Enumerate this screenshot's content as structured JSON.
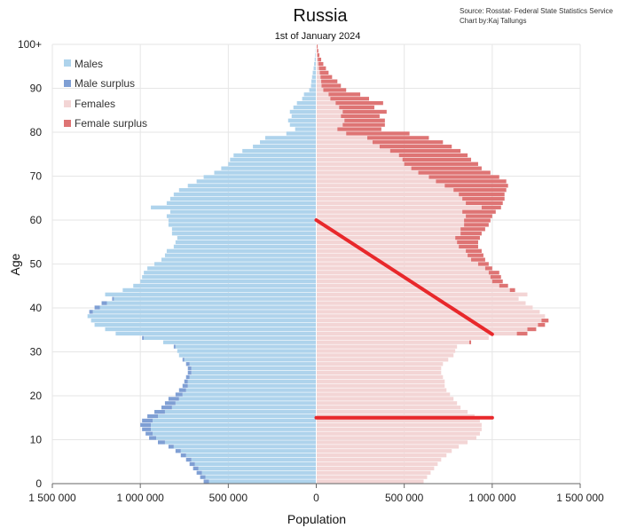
{
  "chart_data": {
    "type": "bar",
    "title": "Russia",
    "subtitle": "1st of January 2024",
    "source_line1": "Source: Rosstat- Federal State Statistics Service",
    "source_line2": "Chart by:Kaj Tallungs",
    "xlabel": "Population",
    "ylabel": "Age",
    "xlim": [
      -1500000,
      1500000
    ],
    "ylim": [
      0,
      100
    ],
    "x_ticks": [
      {
        "value": -1500000,
        "label": "1 500 000"
      },
      {
        "value": -1000000,
        "label": "1 000 000"
      },
      {
        "value": -500000,
        "label": "500 000"
      },
      {
        "value": 0,
        "label": "0"
      },
      {
        "value": 500000,
        "label": "500 000"
      },
      {
        "value": 1000000,
        "label": "1 000 000"
      },
      {
        "value": 1500000,
        "label": "1 500 000"
      }
    ],
    "y_ticks": [
      {
        "value": 0,
        "label": "0"
      },
      {
        "value": 10,
        "label": "10"
      },
      {
        "value": 20,
        "label": "20"
      },
      {
        "value": 30,
        "label": "30"
      },
      {
        "value": 40,
        "label": "40"
      },
      {
        "value": 50,
        "label": "50"
      },
      {
        "value": 60,
        "label": "60"
      },
      {
        "value": 70,
        "label": "70"
      },
      {
        "value": 80,
        "label": "80"
      },
      {
        "value": 90,
        "label": "90"
      },
      {
        "value": 100,
        "label": "100+"
      }
    ],
    "grid": true,
    "legend_position": "top-left",
    "legend": [
      {
        "name": "Males",
        "color": "#aed3ec"
      },
      {
        "name": "Male surplus",
        "color": "#7f9fd4"
      },
      {
        "name": "Females",
        "color": "#f3d5d5"
      },
      {
        "name": "Female surplus",
        "color": "#de7474"
      }
    ],
    "ages": [
      0,
      1,
      2,
      3,
      4,
      5,
      6,
      7,
      8,
      9,
      10,
      11,
      12,
      13,
      14,
      15,
      16,
      17,
      18,
      19,
      20,
      21,
      22,
      23,
      24,
      25,
      26,
      27,
      28,
      29,
      30,
      31,
      32,
      33,
      34,
      35,
      36,
      37,
      38,
      39,
      40,
      41,
      42,
      43,
      44,
      45,
      46,
      47,
      48,
      49,
      50,
      51,
      52,
      53,
      54,
      55,
      56,
      57,
      58,
      59,
      60,
      61,
      62,
      63,
      64,
      65,
      66,
      67,
      68,
      69,
      70,
      71,
      72,
      73,
      74,
      75,
      76,
      77,
      78,
      79,
      80,
      81,
      82,
      83,
      84,
      85,
      86,
      87,
      88,
      89,
      90,
      91,
      92,
      93,
      94,
      95,
      96,
      97,
      98,
      99,
      100
    ],
    "series": [
      {
        "name": "Males",
        "values": [
          640000,
          660000,
          680000,
          700000,
          720000,
          740000,
          770000,
          800000,
          840000,
          900000,
          950000,
          970000,
          990000,
          1000000,
          990000,
          960000,
          920000,
          880000,
          860000,
          840000,
          800000,
          780000,
          760000,
          750000,
          740000,
          730000,
          730000,
          740000,
          760000,
          780000,
          790000,
          810000,
          870000,
          990000,
          1140000,
          1200000,
          1260000,
          1280000,
          1300000,
          1290000,
          1260000,
          1220000,
          1160000,
          1200000,
          1100000,
          1040000,
          1000000,
          990000,
          980000,
          960000,
          920000,
          880000,
          860000,
          850000,
          810000,
          800000,
          790000,
          820000,
          820000,
          840000,
          840000,
          850000,
          830000,
          940000,
          850000,
          830000,
          810000,
          780000,
          730000,
          680000,
          640000,
          580000,
          540000,
          500000,
          490000,
          470000,
          420000,
          360000,
          320000,
          290000,
          170000,
          120000,
          150000,
          160000,
          140000,
          150000,
          130000,
          110000,
          80000,
          70000,
          40000,
          30000,
          28000,
          24000,
          20000,
          15000,
          12000,
          9000,
          6000,
          4000,
          3000
        ]
      },
      {
        "name": "Females",
        "values": [
          610000,
          630000,
          650000,
          670000,
          690000,
          710000,
          740000,
          770000,
          810000,
          860000,
          910000,
          930000,
          940000,
          940000,
          930000,
          900000,
          860000,
          820000,
          800000,
          780000,
          760000,
          740000,
          730000,
          730000,
          720000,
          710000,
          710000,
          720000,
          750000,
          780000,
          790000,
          800000,
          880000,
          980000,
          1200000,
          1250000,
          1300000,
          1320000,
          1300000,
          1270000,
          1230000,
          1190000,
          1150000,
          1200000,
          1130000,
          1090000,
          1060000,
          1050000,
          1040000,
          1000000,
          980000,
          960000,
          950000,
          940000,
          920000,
          920000,
          930000,
          940000,
          960000,
          980000,
          990000,
          1000000,
          1020000,
          1050000,
          1060000,
          1070000,
          1070000,
          1080000,
          1090000,
          1080000,
          1040000,
          990000,
          940000,
          920000,
          880000,
          860000,
          820000,
          770000,
          720000,
          640000,
          530000,
          370000,
          390000,
          390000,
          360000,
          400000,
          330000,
          380000,
          300000,
          250000,
          170000,
          140000,
          120000,
          90000,
          70000,
          55000,
          40000,
          28000,
          18000,
          12000,
          8000
        ]
      }
    ],
    "annotations": [
      {
        "type": "line",
        "from": {
          "x": 0,
          "y": 60
        },
        "to": {
          "x": 1000000,
          "y": 34
        },
        "color": "#e8282b"
      },
      {
        "type": "line",
        "from": {
          "x": 0,
          "y": 15
        },
        "to": {
          "x": 1000000,
          "y": 15
        },
        "color": "#e8282b"
      }
    ]
  }
}
